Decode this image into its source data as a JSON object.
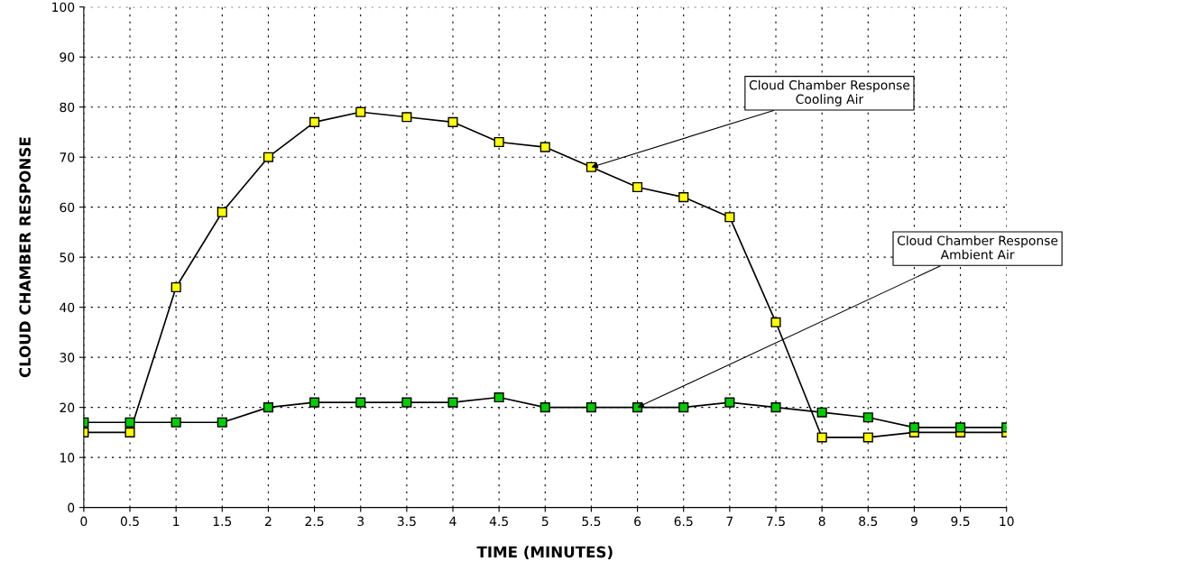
{
  "chart_data": {
    "type": "line",
    "xlabel": "TIME (MINUTES)",
    "ylabel": "CLOUD CHAMBER RESPONSE",
    "x": [
      0,
      0.5,
      1,
      1.5,
      2,
      2.5,
      3,
      3.5,
      4,
      4.5,
      5,
      5.5,
      6,
      6.5,
      7,
      7.5,
      8,
      8.5,
      9,
      9.5,
      10
    ],
    "series": [
      {
        "color": "#ffff00",
        "values": [
          15,
          15,
          44,
          59,
          70,
          77,
          79,
          78,
          77,
          73,
          72,
          68,
          64,
          62,
          58,
          37,
          14,
          14,
          15,
          15,
          15
        ]
      },
      {
        "color": "#00cc00",
        "values": [
          17,
          17,
          17,
          17,
          20,
          21,
          21,
          21,
          21,
          22,
          20,
          20,
          20,
          20,
          21,
          20,
          19,
          18,
          16,
          16,
          16
        ]
      }
    ],
    "xlim": [
      0,
      10
    ],
    "xticks": [
      0,
      0.5,
      1,
      1.5,
      2,
      2.5,
      3,
      3.5,
      4,
      4.5,
      5,
      5.5,
      6,
      6.5,
      7,
      7.5,
      8,
      8.5,
      9,
      9.5,
      10
    ],
    "ylim": [
      0,
      100
    ],
    "yticks": [
      0,
      10,
      20,
      30,
      40,
      50,
      60,
      70,
      80,
      90,
      100
    ],
    "grid": true,
    "marker": "square",
    "line_style": "solid",
    "annotations": [
      {
        "text": "Cloud Chamber Response\nCooling Air",
        "x": 5.5,
        "y": 68
      },
      {
        "text": "Cloud Chamber Response\nAmbient Air",
        "x": 6,
        "y": 20
      }
    ]
  }
}
